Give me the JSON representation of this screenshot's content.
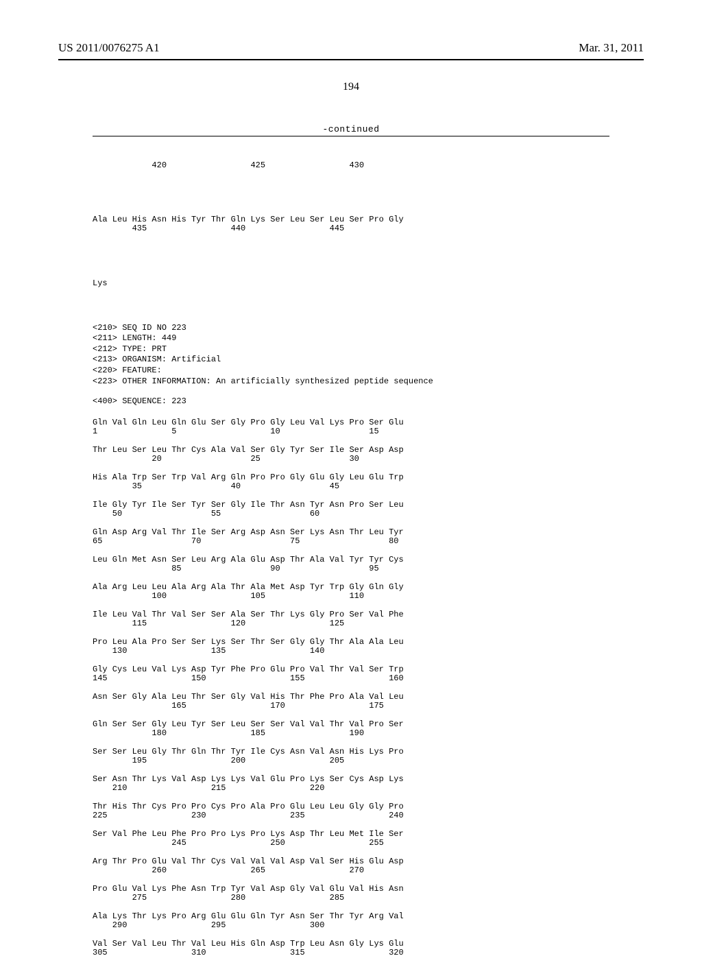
{
  "header": {
    "pub_number": "US 2011/0076275 A1",
    "pub_date": "Mar. 31, 2011"
  },
  "page_number": "194",
  "continued_label": "-continued",
  "top_fragment": {
    "num_line": "            420                 425                 430",
    "rows": [
      {
        "aa": "Ala Leu His Asn His Tyr Thr Gln Lys Ser Leu Ser Leu Ser Pro Gly",
        "num": "        435                 440                 445"
      }
    ],
    "tail": "Lys"
  },
  "meta": [
    "<210> SEQ ID NO 223",
    "<211> LENGTH: 449",
    "<212> TYPE: PRT",
    "<213> ORGANISM: Artificial",
    "<220> FEATURE:",
    "<223> OTHER INFORMATION: An artificially synthesized peptide sequence"
  ],
  "sequence_label": "<400> SEQUENCE: 223",
  "rows": [
    {
      "aa": "Gln Val Gln Leu Gln Glu Ser Gly Pro Gly Leu Val Lys Pro Ser Glu",
      "num": "1               5                   10                  15"
    },
    {
      "aa": "Thr Leu Ser Leu Thr Cys Ala Val Ser Gly Tyr Ser Ile Ser Asp Asp",
      "num": "            20                  25                  30"
    },
    {
      "aa": "His Ala Trp Ser Trp Val Arg Gln Pro Pro Gly Glu Gly Leu Glu Trp",
      "num": "        35                  40                  45"
    },
    {
      "aa": "Ile Gly Tyr Ile Ser Tyr Ser Gly Ile Thr Asn Tyr Asn Pro Ser Leu",
      "num": "    50                  55                  60"
    },
    {
      "aa": "Gln Asp Arg Val Thr Ile Ser Arg Asp Asn Ser Lys Asn Thr Leu Tyr",
      "num": "65                  70                  75                  80"
    },
    {
      "aa": "Leu Gln Met Asn Ser Leu Arg Ala Glu Asp Thr Ala Val Tyr Tyr Cys",
      "num": "                85                  90                  95"
    },
    {
      "aa": "Ala Arg Leu Leu Ala Arg Ala Thr Ala Met Asp Tyr Trp Gly Gln Gly",
      "num": "            100                 105                 110"
    },
    {
      "aa": "Ile Leu Val Thr Val Ser Ser Ala Ser Thr Lys Gly Pro Ser Val Phe",
      "num": "        115                 120                 125"
    },
    {
      "aa": "Pro Leu Ala Pro Ser Ser Lys Ser Thr Ser Gly Gly Thr Ala Ala Leu",
      "num": "    130                 135                 140"
    },
    {
      "aa": "Gly Cys Leu Val Lys Asp Tyr Phe Pro Glu Pro Val Thr Val Ser Trp",
      "num": "145                 150                 155                 160"
    },
    {
      "aa": "Asn Ser Gly Ala Leu Thr Ser Gly Val His Thr Phe Pro Ala Val Leu",
      "num": "                165                 170                 175"
    },
    {
      "aa": "Gln Ser Ser Gly Leu Tyr Ser Leu Ser Ser Val Val Thr Val Pro Ser",
      "num": "            180                 185                 190"
    },
    {
      "aa": "Ser Ser Leu Gly Thr Gln Thr Tyr Ile Cys Asn Val Asn His Lys Pro",
      "num": "        195                 200                 205"
    },
    {
      "aa": "Ser Asn Thr Lys Val Asp Lys Lys Val Glu Pro Lys Ser Cys Asp Lys",
      "num": "    210                 215                 220"
    },
    {
      "aa": "Thr His Thr Cys Pro Pro Cys Pro Ala Pro Glu Leu Leu Gly Gly Pro",
      "num": "225                 230                 235                 240"
    },
    {
      "aa": "Ser Val Phe Leu Phe Pro Pro Lys Pro Lys Asp Thr Leu Met Ile Ser",
      "num": "                245                 250                 255"
    },
    {
      "aa": "Arg Thr Pro Glu Val Thr Cys Val Val Val Asp Val Ser His Glu Asp",
      "num": "            260                 265                 270"
    },
    {
      "aa": "Pro Glu Val Lys Phe Asn Trp Tyr Val Asp Gly Val Glu Val His Asn",
      "num": "        275                 280                 285"
    },
    {
      "aa": "Ala Lys Thr Lys Pro Arg Glu Glu Gln Tyr Asn Ser Thr Tyr Arg Val",
      "num": "    290                 295                 300"
    },
    {
      "aa": "Val Ser Val Leu Thr Val Leu His Gln Asp Trp Leu Asn Gly Lys Glu",
      "num": "305                 310                 315                 320"
    }
  ]
}
